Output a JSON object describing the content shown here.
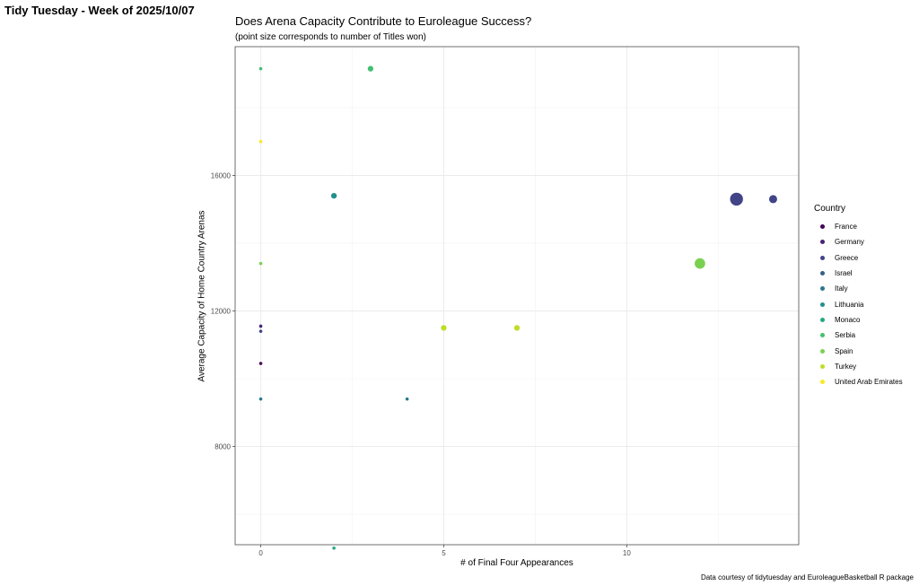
{
  "page": {
    "heading": "Tidy Tuesday - Week of 2025/10/07"
  },
  "chart_data": {
    "type": "scatter",
    "title": "Does Arena Capacity Contribute to Euroleague Success?",
    "subtitle": "(point size corresponds to number of Titles won)",
    "xlabel": "# of Final Four Appearances",
    "ylabel": "Average Capacity of Home Country Arenas",
    "xlim": [
      -0.7,
      14.7
    ],
    "ylim": [
      5100,
      19800
    ],
    "x_ticks": [
      0,
      5,
      10
    ],
    "y_ticks": [
      8000,
      12000,
      16000
    ],
    "grid": true,
    "legend": {
      "title": "Country",
      "position": "right",
      "entries": [
        {
          "name": "France",
          "color": "#440154"
        },
        {
          "name": "Germany",
          "color": "#482475"
        },
        {
          "name": "Greece",
          "color": "#414487"
        },
        {
          "name": "Israel",
          "color": "#355F8D"
        },
        {
          "name": "Italy",
          "color": "#2A788E"
        },
        {
          "name": "Lithuania",
          "color": "#21908C"
        },
        {
          "name": "Monaco",
          "color": "#22A884"
        },
        {
          "name": "Serbia",
          "color": "#43BF71"
        },
        {
          "name": "Spain",
          "color": "#7AD151"
        },
        {
          "name": "Turkey",
          "color": "#BBDF27"
        },
        {
          "name": "United Arab Emirates",
          "color": "#FDE725"
        }
      ]
    },
    "points": [
      {
        "country": "Serbia",
        "x": 0,
        "y": 19150,
        "titles": 0
      },
      {
        "country": "Serbia",
        "x": 3,
        "y": 19150,
        "titles": 1
      },
      {
        "country": "United Arab Emirates",
        "x": 0,
        "y": 17000,
        "titles": 0
      },
      {
        "country": "Lithuania",
        "x": 2,
        "y": 15400,
        "titles": 1
      },
      {
        "country": "Greece",
        "x": 13,
        "y": 15300,
        "titles": 4
      },
      {
        "country": "Greece",
        "x": 14,
        "y": 15300,
        "titles": 2
      },
      {
        "country": "Spain",
        "x": 0,
        "y": 13400,
        "titles": 0
      },
      {
        "country": "Spain",
        "x": 12,
        "y": 13400,
        "titles": 3
      },
      {
        "country": "Turkey",
        "x": 5,
        "y": 11500,
        "titles": 1
      },
      {
        "country": "Turkey",
        "x": 7,
        "y": 11500,
        "titles": 1
      },
      {
        "country": "Germany",
        "x": 0,
        "y": 11550,
        "titles": 0
      },
      {
        "country": "Greece",
        "x": 0,
        "y": 11400,
        "titles": 0
      },
      {
        "country": "France",
        "x": 0,
        "y": 10450,
        "titles": 0
      },
      {
        "country": "Italy",
        "x": 0,
        "y": 9400,
        "titles": 0
      },
      {
        "country": "Italy",
        "x": 4,
        "y": 9400,
        "titles": 0
      },
      {
        "country": "Monaco",
        "x": 2,
        "y": 5000,
        "titles": 0
      }
    ],
    "caption": "Data courtesy of tidytuesday and EuroleagueBasketball R package"
  }
}
